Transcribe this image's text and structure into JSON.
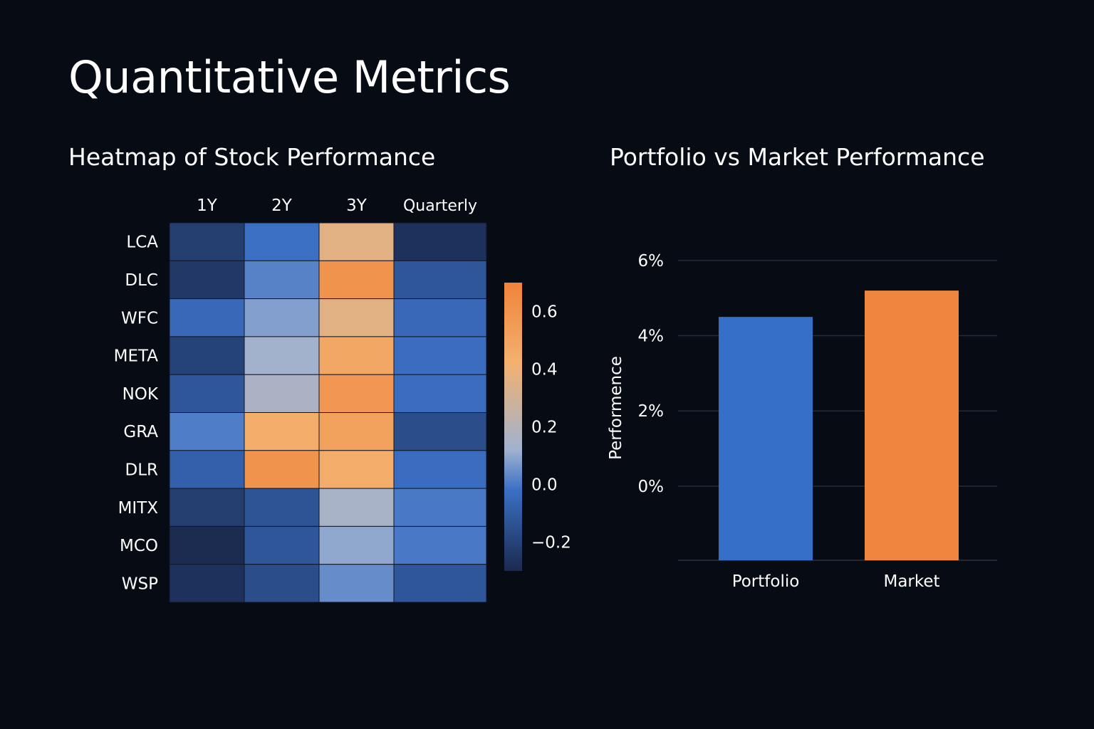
{
  "page": {
    "title": "Quantitative Metrics"
  },
  "colors": {
    "background": "#070b14",
    "gradient_low": "#1b2a4f",
    "gradient_mid_low": "#3b6fc4",
    "gradient_mid": "#9fb2d0",
    "gradient_mid_high": "#f3b170",
    "gradient_high": "#ef8439",
    "portfolio": "#356fc8",
    "market": "#ef8640",
    "gridline": "#252a38"
  },
  "chart_data": [
    {
      "type": "heatmap",
      "title": "Heatmap of Stock Performance",
      "columns": [
        "1Y",
        "2Y",
        "3Y",
        "Quarterly"
      ],
      "rows": [
        "LCA",
        "DLC",
        "WFC",
        "META",
        "NOK",
        "GRA",
        "DLR",
        "MITX",
        "MCO",
        "WSP"
      ],
      "values": [
        [
          -0.22,
          -0.02,
          0.36,
          -0.27
        ],
        [
          -0.24,
          0.02,
          0.6,
          -0.12
        ],
        [
          -0.05,
          0.08,
          0.36,
          -0.05
        ],
        [
          -0.2,
          0.13,
          0.48,
          -0.03
        ],
        [
          -0.12,
          0.16,
          0.58,
          -0.03
        ],
        [
          0.01,
          0.44,
          0.52,
          -0.16
        ],
        [
          -0.08,
          0.6,
          0.45,
          -0.03
        ],
        [
          -0.22,
          -0.13,
          0.15,
          0.0
        ],
        [
          -0.3,
          -0.12,
          0.1,
          0.0
        ],
        [
          -0.27,
          -0.16,
          0.04,
          -0.12
        ]
      ],
      "colorbar": {
        "range": [
          -0.3,
          0.7
        ],
        "ticks": [
          -0.2,
          0.0,
          0.2,
          0.4,
          0.6
        ],
        "tick_labels": [
          "−0.2",
          "0.0",
          "0.2",
          "0.4",
          "0.6"
        ]
      }
    },
    {
      "type": "bar",
      "title": "Portfolio vs Market Performance",
      "categories": [
        "Portfolio",
        "Market"
      ],
      "values": [
        4.5,
        5.2
      ],
      "ylabel": "Performence",
      "ylim": [
        -2,
        6.5
      ],
      "yticks": [
        0,
        2,
        4,
        6
      ],
      "ytick_labels": [
        "0%",
        "2%",
        "4%",
        "6%"
      ],
      "grid": true
    }
  ]
}
